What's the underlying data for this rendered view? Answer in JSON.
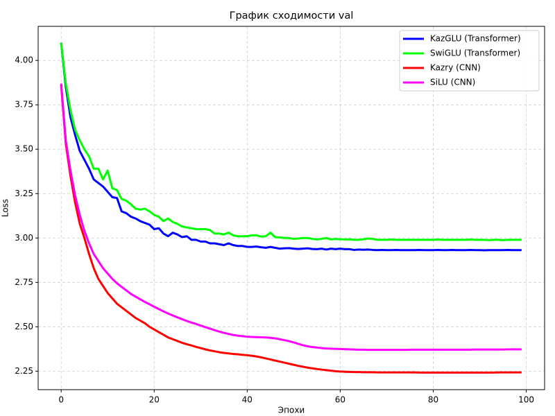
{
  "chart_data": {
    "type": "line",
    "title": "График сходимости val",
    "xlabel": "Эпохи",
    "ylabel": "Loss",
    "x": [
      0,
      1,
      2,
      3,
      4,
      5,
      6,
      7,
      8,
      9,
      10,
      11,
      12,
      13,
      14,
      15,
      16,
      17,
      18,
      19,
      20,
      21,
      22,
      23,
      24,
      25,
      26,
      27,
      28,
      29,
      30,
      31,
      32,
      33,
      34,
      35,
      36,
      37,
      38,
      39,
      40,
      41,
      42,
      43,
      44,
      45,
      46,
      47,
      48,
      49,
      50,
      51,
      52,
      53,
      54,
      55,
      56,
      57,
      58,
      59,
      60,
      61,
      62,
      63,
      64,
      65,
      66,
      67,
      68,
      69,
      70,
      71,
      72,
      73,
      74,
      75,
      76,
      77,
      78,
      79,
      80,
      81,
      82,
      83,
      84,
      85,
      86,
      87,
      88,
      89,
      90,
      91,
      92,
      93,
      94,
      95,
      96,
      97,
      98,
      99
    ],
    "series": [
      {
        "name": "KazGLU (Transformer)",
        "color": "#0000ff",
        "values": [
          4.1,
          3.85,
          3.68,
          3.58,
          3.49,
          3.44,
          3.39,
          3.33,
          3.31,
          3.29,
          3.26,
          3.23,
          3.225,
          3.15,
          3.14,
          3.12,
          3.11,
          3.095,
          3.085,
          3.075,
          3.05,
          3.055,
          3.025,
          3.01,
          3.03,
          3.02,
          3.005,
          3.01,
          2.99,
          2.99,
          2.98,
          2.98,
          2.97,
          2.97,
          2.965,
          2.96,
          2.97,
          2.96,
          2.955,
          2.955,
          2.95,
          2.95,
          2.952,
          2.948,
          2.945,
          2.95,
          2.945,
          2.94,
          2.942,
          2.943,
          2.94,
          2.938,
          2.94,
          2.942,
          2.938,
          2.937,
          2.94,
          2.935,
          2.94,
          2.937,
          2.94,
          2.937,
          2.937,
          2.933,
          2.935,
          2.934,
          2.935,
          2.933,
          2.932,
          2.933,
          2.932,
          2.932,
          2.933,
          2.932,
          2.932,
          2.932,
          2.932,
          2.933,
          2.932,
          2.932,
          2.932,
          2.933,
          2.932,
          2.932,
          2.933,
          2.932,
          2.932,
          2.932,
          2.933,
          2.932,
          2.932,
          2.931,
          2.932,
          2.932,
          2.932,
          2.932,
          2.933,
          2.932,
          2.932,
          2.932
        ]
      },
      {
        "name": "SwiGLU (Transformer)",
        "color": "#00ff00",
        "values": [
          4.1,
          3.87,
          3.72,
          3.61,
          3.55,
          3.5,
          3.46,
          3.39,
          3.39,
          3.33,
          3.38,
          3.28,
          3.27,
          3.22,
          3.21,
          3.19,
          3.165,
          3.16,
          3.165,
          3.15,
          3.13,
          3.12,
          3.095,
          3.11,
          3.09,
          3.08,
          3.065,
          3.06,
          3.055,
          3.05,
          3.05,
          3.05,
          3.045,
          3.025,
          3.025,
          3.02,
          3.03,
          3.015,
          3.01,
          3.01,
          3.01,
          3.015,
          3.015,
          3.008,
          3.01,
          3.03,
          3.005,
          3.003,
          3.0,
          3.0,
          2.995,
          2.997,
          3.0,
          3.0,
          2.995,
          2.992,
          2.995,
          3.0,
          2.992,
          2.995,
          2.993,
          2.992,
          2.993,
          2.99,
          2.99,
          2.993,
          2.997,
          2.995,
          2.99,
          2.99,
          2.99,
          2.992,
          2.99,
          2.99,
          2.99,
          2.99,
          2.99,
          2.99,
          2.99,
          2.99,
          2.99,
          2.992,
          2.99,
          2.99,
          2.99,
          2.99,
          2.99,
          2.99,
          2.992,
          2.99,
          2.99,
          2.99,
          2.988,
          2.99,
          2.99,
          2.988,
          2.99,
          2.99,
          2.99,
          2.99
        ]
      },
      {
        "name": "Kazry (CNN)",
        "color": "#ff0000",
        "values": [
          3.86,
          3.53,
          3.35,
          3.2,
          3.08,
          3.0,
          2.91,
          2.83,
          2.77,
          2.73,
          2.69,
          2.66,
          2.63,
          2.61,
          2.59,
          2.57,
          2.55,
          2.535,
          2.52,
          2.5,
          2.485,
          2.47,
          2.455,
          2.44,
          2.43,
          2.42,
          2.41,
          2.402,
          2.395,
          2.387,
          2.38,
          2.373,
          2.367,
          2.362,
          2.357,
          2.353,
          2.35,
          2.347,
          2.345,
          2.342,
          2.34,
          2.337,
          2.333,
          2.328,
          2.322,
          2.316,
          2.31,
          2.304,
          2.298,
          2.292,
          2.286,
          2.28,
          2.275,
          2.27,
          2.266,
          2.262,
          2.259,
          2.256,
          2.253,
          2.25,
          2.248,
          2.247,
          2.246,
          2.245,
          2.245,
          2.244,
          2.244,
          2.244,
          2.243,
          2.243,
          2.243,
          2.243,
          2.243,
          2.243,
          2.243,
          2.243,
          2.243,
          2.242,
          2.242,
          2.242,
          2.242,
          2.242,
          2.242,
          2.242,
          2.242,
          2.242,
          2.242,
          2.242,
          2.242,
          2.242,
          2.242,
          2.242,
          2.242,
          2.242,
          2.243,
          2.243,
          2.243,
          2.243,
          2.243,
          2.243
        ]
      },
      {
        "name": "SiLU (CNN)",
        "color": "#ff00ff",
        "values": [
          3.87,
          3.55,
          3.38,
          3.24,
          3.13,
          3.04,
          2.97,
          2.91,
          2.87,
          2.83,
          2.8,
          2.77,
          2.745,
          2.725,
          2.705,
          2.685,
          2.67,
          2.655,
          2.64,
          2.627,
          2.613,
          2.6,
          2.587,
          2.575,
          2.564,
          2.553,
          2.543,
          2.533,
          2.524,
          2.516,
          2.507,
          2.498,
          2.49,
          2.481,
          2.473,
          2.466,
          2.46,
          2.454,
          2.45,
          2.447,
          2.444,
          2.443,
          2.442,
          2.441,
          2.44,
          2.438,
          2.435,
          2.43,
          2.425,
          2.419,
          2.412,
          2.404,
          2.396,
          2.39,
          2.386,
          2.383,
          2.38,
          2.378,
          2.377,
          2.376,
          2.375,
          2.374,
          2.373,
          2.372,
          2.371,
          2.371,
          2.37,
          2.37,
          2.37,
          2.37,
          2.37,
          2.37,
          2.37,
          2.37,
          2.37,
          2.371,
          2.371,
          2.371,
          2.371,
          2.371,
          2.371,
          2.371,
          2.371,
          2.371,
          2.371,
          2.371,
          2.371,
          2.371,
          2.371,
          2.372,
          2.372,
          2.372,
          2.372,
          2.372,
          2.372,
          2.372,
          2.373,
          2.373,
          2.373,
          2.373
        ]
      }
    ],
    "xlim": [
      -4.95,
      103.95
    ],
    "xticks": [
      0,
      20,
      40,
      60,
      80,
      100
    ],
    "ylim": [
      2.146,
      4.192
    ],
    "yticks": [
      2.25,
      {
        "value": 2.5,
        "label": "2.50"
      },
      2.75,
      {
        "value": 3,
        "label": "3.00"
      },
      3.25,
      {
        "value": 3.5,
        "label": "3.50"
      },
      3.75,
      {
        "value": 4,
        "label": "4.00"
      }
    ],
    "grid": true,
    "legend": "upper right"
  }
}
